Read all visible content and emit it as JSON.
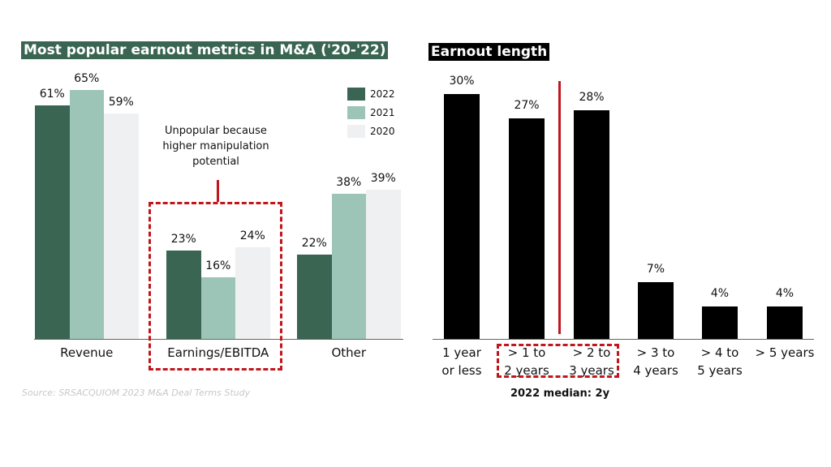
{
  "chart_data": [
    {
      "type": "bar",
      "title": "Most popular earnout metrics in M&A ('20-'22)",
      "categories": [
        "Revenue",
        "Earnings/EBITDA",
        "Other"
      ],
      "series": [
        {
          "name": "2022",
          "color": "#3a6552",
          "values": [
            61,
            23,
            22
          ]
        },
        {
          "name": "2021",
          "color": "#9cc4b7",
          "values": [
            65,
            16,
            38
          ]
        },
        {
          "name": "2020",
          "color": "#eef0f1",
          "values": [
            59,
            24,
            39
          ]
        }
      ],
      "value_suffix": "%",
      "legend": "top-right",
      "annotation": "Unpopular because higher manipulation potential",
      "highlight": "Earnings/EBITDA",
      "source": "Source: SRSACQUIOM 2023 M&A Deal Terms Study",
      "title_color": "#3a6552"
    },
    {
      "type": "bar",
      "title": "Earnout length",
      "categories": [
        "1 year or less",
        "> 1 to 2 years",
        "> 2 to 3 years",
        "> 3 to 4 years",
        "> 4 to 5 years",
        "> 5 years"
      ],
      "category_lines": [
        [
          "1 year",
          "or less"
        ],
        [
          "> 1 to",
          "2 years"
        ],
        [
          "> 2 to",
          "3 years"
        ],
        [
          "> 3 to",
          "4 years"
        ],
        [
          "> 4 to",
          "5 years"
        ],
        [
          "> 5 years",
          ""
        ]
      ],
      "values": [
        30,
        27,
        28,
        7,
        4,
        4
      ],
      "value_suffix": "%",
      "color": "#000000",
      "annotation": "2022 median: 2y",
      "highlight_color": "#c0161c"
    }
  ]
}
